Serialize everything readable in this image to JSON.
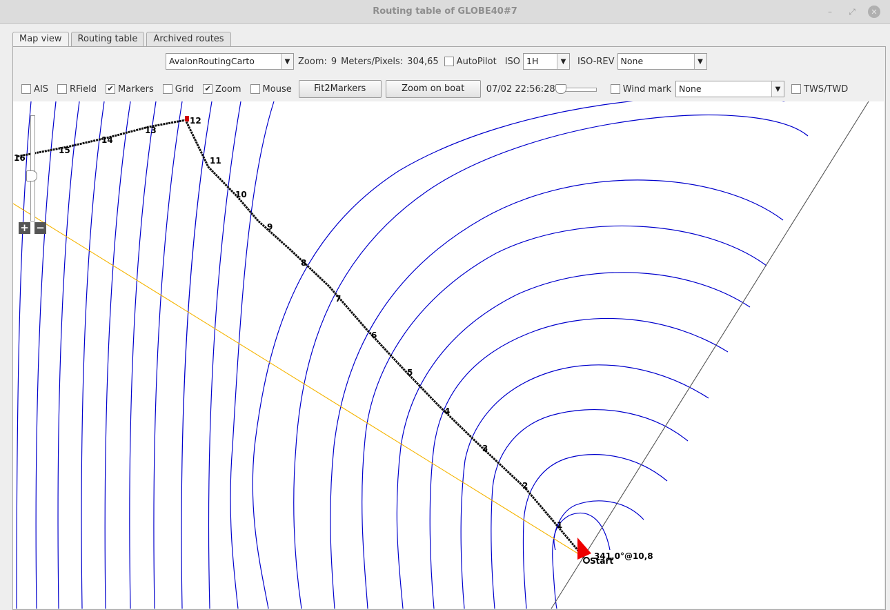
{
  "window": {
    "title": "Routing table of GLOBE40#7",
    "controls": [
      "–",
      "⤢",
      "✕"
    ]
  },
  "tabs": [
    {
      "label": "Map view",
      "active": true
    },
    {
      "label": "Routing table",
      "active": false
    },
    {
      "label": "Archived routes",
      "active": false
    }
  ],
  "toolbar1": {
    "map_provider": "AvalonRoutingCarto",
    "zoom_label": "Zoom:",
    "zoom_value": "9",
    "mpp_label": "Meters/Pixels:",
    "mpp_value": "304,65",
    "autopilot_label": "AutoPilot",
    "autopilot_checked": false,
    "iso_label": "ISO",
    "iso_value": "1H",
    "isorev_label": "ISO-REV",
    "isorev_value": "None"
  },
  "toolbar2": {
    "ais": {
      "label": "AIS",
      "checked": false
    },
    "rfield": {
      "label": "RField",
      "checked": false
    },
    "markers": {
      "label": "Markers",
      "checked": true
    },
    "grid": {
      "label": "Grid",
      "checked": false
    },
    "zoom": {
      "label": "Zoom",
      "checked": true
    },
    "mouse": {
      "label": "Mouse",
      "checked": false
    },
    "fit_button": "Fit2Markers",
    "boat_button": "Zoom on boat",
    "datetime": "07/02 22:56:28",
    "windmark": {
      "label": "Wind mark",
      "checked": false
    },
    "windmark_value": "None",
    "tws": {
      "label": "TWS/TWD",
      "checked": false
    }
  },
  "map": {
    "route_color": "#000000",
    "isochrone_color": "#0000cc",
    "orthodromy_color": "#f5b400",
    "boat_color": "#ee0000",
    "waypoint_labels": [
      "1",
      "2",
      "3",
      "4",
      "5",
      "6",
      "7",
      "8",
      "9",
      "10",
      "11",
      "12",
      "13",
      "14",
      "15",
      "16"
    ],
    "start_label": "Start",
    "wind_label": "341,0°@10,8"
  },
  "zoom_controls": {
    "plus": "+",
    "minus": "−"
  }
}
